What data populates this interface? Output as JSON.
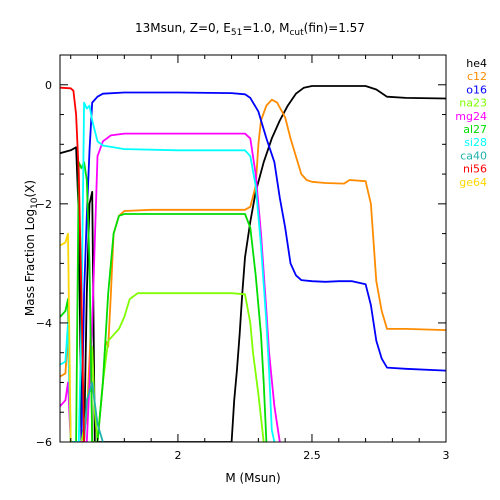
{
  "chart_data": {
    "type": "line",
    "title_parts": {
      "prefix": "13Msun, Z=0, E",
      "sub1": "51",
      "mid": "=1.0, M",
      "sub2": "cut",
      "suffix": "(fin)=1.57"
    },
    "xlabel": "M (Msun)",
    "ylabel_parts": {
      "main": "Mass Fraction Log",
      "sub": "10",
      "tail": "(X)"
    },
    "xlim": [
      1.56,
      3.0
    ],
    "ylim": [
      -6,
      0.5
    ],
    "x_ticks": [
      2,
      2.5,
      3
    ],
    "x_tick_labels": [
      "2",
      "2.5",
      "3"
    ],
    "y_ticks": [
      0,
      -2,
      -4,
      -6
    ],
    "y_tick_labels": [
      "0",
      "−2",
      "−4",
      "−6"
    ],
    "legend_position": "right",
    "series": [
      {
        "name": "he4",
        "color": "#000000",
        "points": [
          [
            1.56,
            -1.15
          ],
          [
            1.6,
            -1.1
          ],
          [
            1.62,
            -1.05
          ],
          [
            1.63,
            -2.2
          ],
          [
            1.64,
            -6.0
          ],
          [
            1.65,
            -6.0
          ],
          [
            1.66,
            -3.5
          ],
          [
            1.67,
            -2.0
          ],
          [
            1.68,
            -1.8
          ],
          [
            1.69,
            -6.0
          ],
          [
            2.2,
            -6.0
          ],
          [
            2.21,
            -5.3
          ],
          [
            2.22,
            -4.8
          ],
          [
            2.23,
            -4.2
          ],
          [
            2.24,
            -3.5
          ],
          [
            2.25,
            -2.9
          ],
          [
            2.27,
            -2.3
          ],
          [
            2.29,
            -1.8
          ],
          [
            2.32,
            -1.3
          ],
          [
            2.35,
            -0.9
          ],
          [
            2.38,
            -0.6
          ],
          [
            2.41,
            -0.35
          ],
          [
            2.44,
            -0.15
          ],
          [
            2.47,
            -0.05
          ],
          [
            2.5,
            -0.02
          ],
          [
            2.6,
            -0.02
          ],
          [
            2.7,
            -0.02
          ],
          [
            2.74,
            -0.08
          ],
          [
            2.78,
            -0.2
          ],
          [
            2.85,
            -0.22
          ],
          [
            3.0,
            -0.23
          ]
        ]
      },
      {
        "name": "c12",
        "color": "#ff8c00",
        "points": [
          [
            1.56,
            -4.9
          ],
          [
            1.58,
            -4.85
          ],
          [
            1.59,
            -4.2
          ],
          [
            1.6,
            -6.0
          ],
          [
            1.62,
            -6.0
          ],
          [
            1.64,
            -6.0
          ],
          [
            1.66,
            -5.6
          ],
          [
            1.675,
            -4.1
          ],
          [
            1.68,
            -6.0
          ],
          [
            1.7,
            -6.0
          ],
          [
            1.72,
            -5.0
          ],
          [
            1.73,
            -4.3
          ],
          [
            1.74,
            -4.4
          ],
          [
            1.75,
            -3.5
          ],
          [
            1.76,
            -2.5
          ],
          [
            1.78,
            -2.2
          ],
          [
            1.8,
            -2.12
          ],
          [
            1.9,
            -2.1
          ],
          [
            2.2,
            -2.1
          ],
          [
            2.25,
            -2.1
          ],
          [
            2.27,
            -2.05
          ],
          [
            2.29,
            -1.7
          ],
          [
            2.3,
            -1.0
          ],
          [
            2.31,
            -0.6
          ],
          [
            2.33,
            -0.35
          ],
          [
            2.35,
            -0.25
          ],
          [
            2.37,
            -0.3
          ],
          [
            2.4,
            -0.55
          ],
          [
            2.42,
            -0.9
          ],
          [
            2.44,
            -1.2
          ],
          [
            2.46,
            -1.5
          ],
          [
            2.48,
            -1.6
          ],
          [
            2.5,
            -1.63
          ],
          [
            2.55,
            -1.65
          ],
          [
            2.62,
            -1.66
          ],
          [
            2.64,
            -1.6
          ],
          [
            2.7,
            -1.62
          ],
          [
            2.72,
            -2.0
          ],
          [
            2.74,
            -3.3
          ],
          [
            2.76,
            -3.8
          ],
          [
            2.78,
            -4.1
          ],
          [
            2.85,
            -4.1
          ],
          [
            3.0,
            -4.12
          ]
        ]
      },
      {
        "name": "o16",
        "color": "#0000ff",
        "points": [
          [
            1.64,
            -6.0
          ],
          [
            1.65,
            -3.5
          ],
          [
            1.66,
            -2.2
          ],
          [
            1.67,
            -1.1
          ],
          [
            1.68,
            -0.3
          ],
          [
            1.7,
            -0.2
          ],
          [
            1.72,
            -0.15
          ],
          [
            1.8,
            -0.13
          ],
          [
            2.0,
            -0.13
          ],
          [
            2.2,
            -0.14
          ],
          [
            2.25,
            -0.16
          ],
          [
            2.27,
            -0.22
          ],
          [
            2.3,
            -0.45
          ],
          [
            2.33,
            -0.9
          ],
          [
            2.36,
            -1.3
          ],
          [
            2.38,
            -1.9
          ],
          [
            2.4,
            -2.4
          ],
          [
            2.42,
            -3.0
          ],
          [
            2.44,
            -3.2
          ],
          [
            2.46,
            -3.28
          ],
          [
            2.5,
            -3.3
          ],
          [
            2.55,
            -3.31
          ],
          [
            2.6,
            -3.3
          ],
          [
            2.65,
            -3.3
          ],
          [
            2.7,
            -3.35
          ],
          [
            2.72,
            -3.7
          ],
          [
            2.74,
            -4.3
          ],
          [
            2.76,
            -4.6
          ],
          [
            2.78,
            -4.75
          ],
          [
            2.85,
            -4.77
          ],
          [
            3.0,
            -4.8
          ]
        ]
      },
      {
        "name": "na23",
        "color": "#7fff00",
        "points": [
          [
            1.63,
            -6.0
          ],
          [
            1.64,
            -6.0
          ],
          [
            1.66,
            -5.5
          ],
          [
            1.68,
            -4.4
          ],
          [
            1.69,
            -5.5
          ],
          [
            1.7,
            -6.0
          ],
          [
            1.72,
            -5.0
          ],
          [
            1.74,
            -4.3
          ],
          [
            1.76,
            -4.2
          ],
          [
            1.78,
            -4.1
          ],
          [
            1.8,
            -3.9
          ],
          [
            1.82,
            -3.6
          ],
          [
            1.85,
            -3.5
          ],
          [
            1.9,
            -3.5
          ],
          [
            2.0,
            -3.5
          ],
          [
            2.2,
            -3.5
          ],
          [
            2.25,
            -3.52
          ],
          [
            2.27,
            -4.0
          ],
          [
            2.28,
            -4.5
          ],
          [
            2.3,
            -5.2
          ],
          [
            2.32,
            -6.0
          ]
        ]
      },
      {
        "name": "mg24",
        "color": "#ff00ff",
        "points": [
          [
            1.56,
            -5.4
          ],
          [
            1.58,
            -5.3
          ],
          [
            1.59,
            -5.0
          ],
          [
            1.6,
            -6.0
          ],
          [
            1.66,
            -6.0
          ],
          [
            1.68,
            -4.0
          ],
          [
            1.7,
            -1.2
          ],
          [
            1.72,
            -0.95
          ],
          [
            1.75,
            -0.85
          ],
          [
            1.8,
            -0.82
          ],
          [
            2.0,
            -0.82
          ],
          [
            2.25,
            -0.82
          ],
          [
            2.27,
            -0.9
          ],
          [
            2.29,
            -1.5
          ],
          [
            2.31,
            -2.5
          ],
          [
            2.33,
            -3.8
          ],
          [
            2.34,
            -4.5
          ],
          [
            2.36,
            -5.4
          ],
          [
            2.38,
            -6.0
          ]
        ]
      },
      {
        "name": "al27",
        "color": "#00dd00",
        "points": [
          [
            1.56,
            -3.9
          ],
          [
            1.58,
            -3.8
          ],
          [
            1.59,
            -3.6
          ],
          [
            1.6,
            -6.0
          ],
          [
            1.62,
            -6.0
          ],
          [
            1.63,
            -1.3
          ],
          [
            1.64,
            -1.4
          ],
          [
            1.65,
            -1.3
          ],
          [
            1.66,
            -1.6
          ],
          [
            1.67,
            -3.0
          ],
          [
            1.68,
            -6.0
          ],
          [
            1.7,
            -6.0
          ],
          [
            1.72,
            -5.0
          ],
          [
            1.74,
            -3.5
          ],
          [
            1.76,
            -2.5
          ],
          [
            1.78,
            -2.2
          ],
          [
            1.8,
            -2.17
          ],
          [
            2.0,
            -2.17
          ],
          [
            2.25,
            -2.17
          ],
          [
            2.27,
            -2.4
          ],
          [
            2.29,
            -3.2
          ],
          [
            2.31,
            -4.2
          ],
          [
            2.32,
            -5.0
          ],
          [
            2.33,
            -6.0
          ]
        ]
      },
      {
        "name": "si28",
        "color": "#00ffff",
        "points": [
          [
            1.56,
            -4.7
          ],
          [
            1.58,
            -4.65
          ],
          [
            1.59,
            -4.0
          ],
          [
            1.6,
            -6.0
          ],
          [
            1.63,
            -6.0
          ],
          [
            1.64,
            -4.0
          ],
          [
            1.65,
            -0.3
          ],
          [
            1.66,
            -0.4
          ],
          [
            1.67,
            -0.35
          ],
          [
            1.68,
            -0.6
          ],
          [
            1.7,
            -0.95
          ],
          [
            1.72,
            -1.02
          ],
          [
            1.8,
            -1.08
          ],
          [
            2.0,
            -1.1
          ],
          [
            2.25,
            -1.1
          ],
          [
            2.27,
            -1.2
          ],
          [
            2.29,
            -1.7
          ],
          [
            2.31,
            -2.7
          ],
          [
            2.33,
            -4.0
          ],
          [
            2.34,
            -4.8
          ],
          [
            2.35,
            -5.8
          ],
          [
            2.36,
            -6.0
          ]
        ]
      },
      {
        "name": "ca40",
        "color": "#20b2aa",
        "points": [
          [
            1.65,
            -6.0
          ],
          [
            1.66,
            -5.3
          ],
          [
            1.68,
            -5.0
          ],
          [
            1.7,
            -5.7
          ],
          [
            1.72,
            -6.0
          ]
        ]
      },
      {
        "name": "ni56",
        "color": "#ff0000",
        "points": [
          [
            1.56,
            -0.05
          ],
          [
            1.6,
            -0.06
          ],
          [
            1.61,
            -0.1
          ],
          [
            1.62,
            -0.5
          ],
          [
            1.63,
            -1.5
          ],
          [
            1.64,
            -3.5
          ],
          [
            1.65,
            -6.0
          ]
        ]
      },
      {
        "name": "ge64",
        "color": "#ffd700",
        "points": [
          [
            1.56,
            -2.7
          ],
          [
            1.58,
            -2.65
          ],
          [
            1.59,
            -2.5
          ],
          [
            1.6,
            -6.0
          ]
        ]
      }
    ]
  }
}
